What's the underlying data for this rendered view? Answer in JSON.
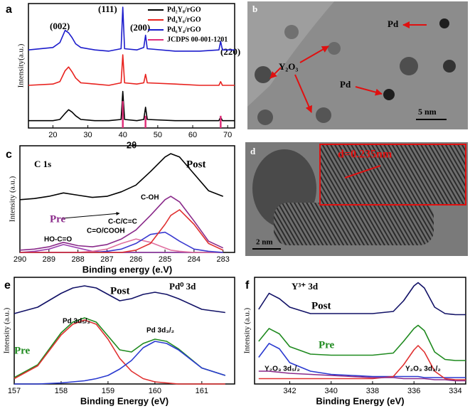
{
  "chart_data": [
    {
      "type": "line",
      "panel": "a",
      "xlabel": "2θ",
      "ylabel": "Intensity(a.u.)",
      "xlim": [
        13,
        72
      ],
      "xticks": [
        20,
        30,
        40,
        50,
        60,
        70
      ],
      "ylim": [
        0,
        102
      ],
      "legend": "upper right",
      "annotations": [
        "(002)",
        "(111)",
        "(200)",
        "(220)"
      ],
      "x": [
        13,
        20,
        22,
        23.5,
        24.5,
        25.5,
        26.5,
        28,
        32,
        36,
        39.5,
        40,
        40.5,
        44,
        46,
        46.5,
        47,
        55,
        62,
        67.5,
        68,
        68.5,
        72
      ],
      "series": [
        {
          "name": "Pd₂Y₈/rGO",
          "color": "#000000",
          "values": [
            6,
            6,
            7,
            12,
            15,
            13,
            10,
            7,
            6,
            6,
            7,
            30,
            7,
            6,
            7,
            17,
            7,
            6,
            6,
            6,
            9,
            6,
            6
          ]
        },
        {
          "name": "Pd₄Y₆/rGO",
          "color": "#e8211d",
          "values": [
            35,
            36,
            38,
            47,
            50,
            46,
            41,
            37,
            36,
            35,
            37,
            60,
            37,
            36,
            37,
            44,
            37,
            36,
            35,
            35,
            38,
            35,
            35
          ]
        },
        {
          "name": "Pd₆Y₄/rGO",
          "color": "#1c1ccc",
          "values": [
            64,
            66,
            70,
            80,
            78,
            74,
            69,
            66,
            64,
            63,
            65,
            99,
            65,
            64,
            66,
            76,
            65,
            63,
            63,
            64,
            71,
            64,
            64
          ]
        },
        {
          "name": "JCDPS 00-001-1201",
          "color": "#e0307a",
          "style": "stick",
          "x": [
            40,
            46.5,
            68
          ],
          "values": [
            22,
            10,
            10
          ]
        }
      ]
    },
    {
      "type": "line",
      "panel": "c",
      "xlabel": "Binding energy (e.V)",
      "ylabel": "Intensity (a.u.)",
      "xlim": [
        290,
        282.6
      ],
      "xticks": [
        290,
        289,
        288,
        287,
        286,
        285,
        284,
        283
      ],
      "ylim": [
        0,
        95
      ],
      "annotations": [
        "C 1s"
      ],
      "x": [
        290,
        289.5,
        289,
        288.5,
        288,
        287.5,
        287,
        286.5,
        286,
        285.5,
        285,
        284.8,
        284.5,
        284,
        283.5,
        283
      ],
      "series": [
        {
          "name": "Post",
          "color": "#000000",
          "values": [
            47,
            48,
            50,
            53,
            51,
            49,
            50,
            54,
            60,
            72,
            85,
            88,
            85,
            70,
            55,
            50
          ]
        },
        {
          "name": "Pre",
          "color": "#8a2a8a",
          "values": [
            2,
            3,
            5,
            9,
            6,
            5,
            7,
            12,
            20,
            33,
            47,
            50,
            45,
            28,
            10,
            4
          ]
        },
        {
          "name": "HO-C=O",
          "color": "#9b3fb0",
          "values": [
            0,
            1,
            3,
            7,
            4,
            1,
            0,
            0,
            0,
            0,
            0,
            0,
            0,
            0,
            0,
            0
          ]
        },
        {
          "name": "C=O/COOH",
          "color": "#e070a0",
          "values": [
            0,
            0,
            0,
            0,
            0,
            1,
            3,
            8,
            12,
            9,
            4,
            2,
            1,
            0,
            0,
            0
          ]
        },
        {
          "name": "C-C/C=C",
          "color": "#3a3ad0",
          "values": [
            0,
            0,
            0,
            0,
            0,
            0,
            1,
            3,
            8,
            16,
            18,
            15,
            10,
            3,
            1,
            0
          ]
        },
        {
          "name": "C-OH",
          "color": "#e03030",
          "values": [
            0,
            0,
            0,
            0,
            0,
            0,
            0,
            0,
            2,
            8,
            25,
            33,
            38,
            25,
            8,
            2
          ]
        }
      ]
    },
    {
      "type": "line",
      "panel": "e",
      "xlabel": "Binding Energy (eV)",
      "ylabel": "Intensity (a.u.)",
      "xlim": [
        157,
        161.7
      ],
      "xticks": [
        157,
        158,
        159,
        160,
        161
      ],
      "ylim": [
        0,
        100
      ],
      "annotations": [
        "Pd⁰ 3d"
      ],
      "x": [
        157,
        157.5,
        158,
        158.25,
        158.5,
        158.75,
        159,
        159.25,
        159.5,
        159.75,
        160,
        160.25,
        160.5,
        161,
        161.5
      ],
      "series": [
        {
          "name": "Post",
          "color": "#111166",
          "values": [
            66,
            72,
            85,
            90,
            92,
            90,
            84,
            78,
            80,
            84,
            86,
            84,
            80,
            70,
            67
          ]
        },
        {
          "name": "Pre",
          "color": "#1f8a1f",
          "values": [
            6,
            18,
            48,
            58,
            62,
            58,
            45,
            32,
            30,
            38,
            42,
            40,
            33,
            15,
            8
          ]
        },
        {
          "name": "Pd 3d₅/₂",
          "color": "#e03030",
          "values": [
            5,
            17,
            46,
            56,
            60,
            56,
            42,
            24,
            12,
            5,
            2,
            1,
            0,
            0,
            0
          ]
        },
        {
          "name": "Pd 3d₃/₂",
          "color": "#2a3ad0",
          "values": [
            0,
            0,
            1,
            2,
            3,
            5,
            8,
            14,
            22,
            34,
            40,
            38,
            32,
            15,
            8
          ]
        }
      ]
    },
    {
      "type": "line",
      "panel": "f",
      "xlabel": "Binding Energy (eV)",
      "ylabel": "Intensity (a.u.)",
      "xlim": [
        343.7,
        333.5
      ],
      "xticks": [
        342,
        340,
        338,
        336,
        334
      ],
      "ylim": [
        0,
        100
      ],
      "annotations": [
        "Y³⁺ 3d"
      ],
      "x": [
        343.5,
        343,
        342.5,
        342,
        341,
        340,
        339,
        338,
        337,
        336.5,
        336,
        335.8,
        335.5,
        335,
        334.5,
        334,
        333.5
      ],
      "series": [
        {
          "name": "Post",
          "color": "#111166",
          "values": [
            70,
            85,
            80,
            72,
            66,
            66,
            66,
            66,
            68,
            78,
            92,
            95,
            90,
            72,
            66,
            65,
            65
          ]
        },
        {
          "name": "Pre",
          "color": "#1f8a1f",
          "values": [
            40,
            52,
            47,
            35,
            28,
            27,
            27,
            27,
            29,
            40,
            52,
            55,
            50,
            30,
            23,
            22,
            22
          ]
        },
        {
          "name": "Y₂O₃ 3d₅/₂",
          "color": "#2a3ad0",
          "values": [
            25,
            38,
            33,
            20,
            12,
            9,
            8,
            7,
            7,
            7,
            7,
            7,
            6,
            6,
            6,
            6,
            6
          ]
        },
        {
          "name": "Y₂O₃ 3d₃/₂",
          "color": "#e03030",
          "values": [
            5,
            5,
            5,
            5,
            5,
            5,
            5,
            5,
            7,
            18,
            32,
            36,
            30,
            12,
            5,
            4,
            4
          ]
        },
        {
          "color": "#8a2a8a",
          "values": [
            12,
            12,
            11,
            10,
            9,
            8,
            7,
            6,
            6,
            5,
            5,
            5,
            5,
            4,
            4,
            3,
            3
          ]
        }
      ]
    }
  ],
  "images": [
    {
      "panel": "b",
      "labels": [
        "Pd",
        "Y₂O₃",
        "Pd",
        "5 nm"
      ]
    },
    {
      "panel": "d",
      "labels": [
        "d=0.235nm",
        "2 nm"
      ]
    }
  ]
}
